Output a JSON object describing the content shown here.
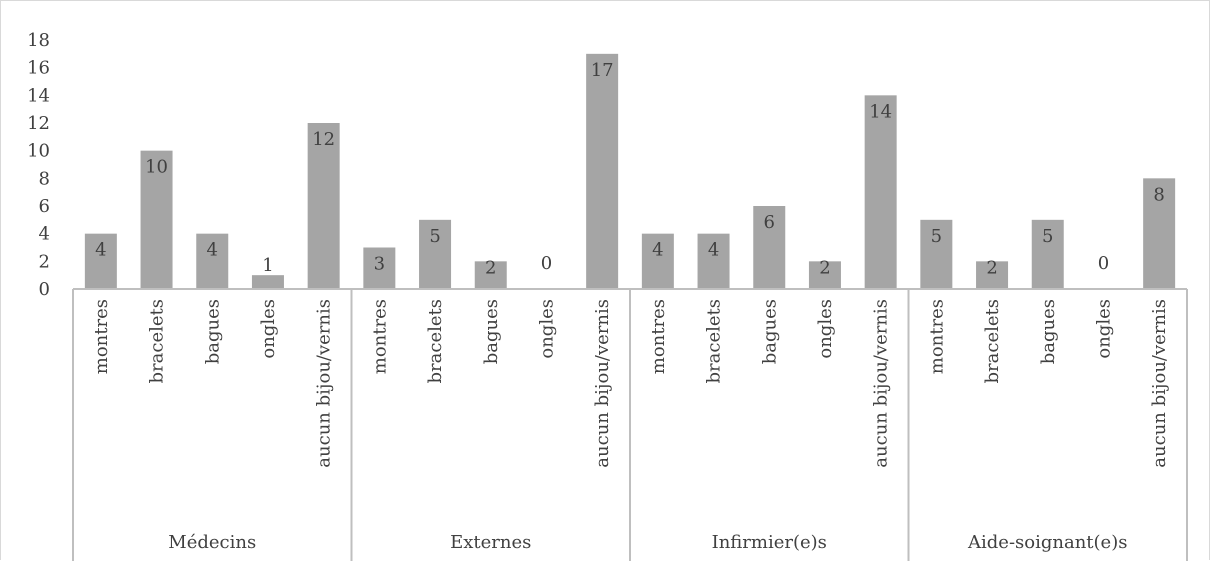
{
  "chart_data": {
    "type": "bar",
    "title": "",
    "xlabel": "",
    "ylabel": "",
    "ylim": [
      0,
      18
    ],
    "y_ticks": [
      "0",
      "2",
      "4",
      "6",
      "8",
      "10",
      "12",
      "14",
      "16",
      "18"
    ],
    "grid": false,
    "legend": "none",
    "bar_color": "#a5a5a5",
    "groups": [
      {
        "name": "Médecins",
        "categories": [
          "montres",
          "bracelets",
          "bagues",
          "ongles",
          "aucun bijou/vernis"
        ],
        "values": [
          4,
          10,
          4,
          1,
          12
        ],
        "labels": [
          "4",
          "10",
          "4",
          "1",
          "12"
        ]
      },
      {
        "name": "Externes",
        "categories": [
          "montres",
          "bracelets",
          "bagues",
          "ongles",
          "aucun bijou/vernis"
        ],
        "values": [
          3,
          5,
          2,
          0,
          17
        ],
        "labels": [
          "3",
          "5",
          "2",
          "0",
          "17"
        ]
      },
      {
        "name": "Infirmier(e)s",
        "categories": [
          "montres",
          "bracelets",
          "bagues",
          "ongles",
          "aucun bijou/vernis"
        ],
        "values": [
          4,
          4,
          6,
          2,
          14
        ],
        "labels": [
          "4",
          "4",
          "6",
          "2",
          "14"
        ]
      },
      {
        "name": "Aide-soignant(e)s",
        "categories": [
          "montres",
          "bracelets",
          "bagues",
          "ongles",
          "aucun bijou/vernis"
        ],
        "values": [
          5,
          2,
          5,
          0,
          8
        ],
        "labels": [
          "5",
          "2",
          "5",
          "0",
          "8"
        ]
      }
    ]
  }
}
